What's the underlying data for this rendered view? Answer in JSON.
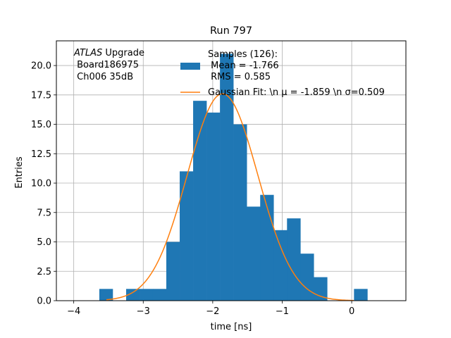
{
  "chart_data": {
    "type": "bar",
    "title": "Run 797",
    "xlabel": "time [ns]",
    "ylabel": "Entries",
    "xlim": [
      -4.25,
      0.78
    ],
    "ylim": [
      0,
      22.1
    ],
    "grid": true,
    "xticks": [
      -4,
      -3,
      -2,
      -1,
      0
    ],
    "xtick_labels": [
      "−4",
      "−3",
      "−2",
      "−1",
      "0"
    ],
    "yticks": [
      0,
      2.5,
      5,
      7.5,
      10,
      12.5,
      15,
      17.5,
      20
    ],
    "ytick_labels": [
      "0.0",
      "2.5",
      "5.0",
      "7.5",
      "10.0",
      "12.5",
      "15.0",
      "17.5",
      "20.0"
    ],
    "annotation": {
      "line1_italic": "ATLAS",
      "line1_rest": " Upgrade",
      "line2": " Board186975",
      "line3": " Ch006 35dB"
    },
    "histogram": {
      "color": "#1f77b4",
      "bin_edges": [
        -3.632,
        -3.439,
        -3.246,
        -3.053,
        -2.861,
        -2.668,
        -2.475,
        -2.282,
        -2.089,
        -1.896,
        -1.703,
        -1.51,
        -1.317,
        -1.124,
        -0.931,
        -0.738,
        -0.546,
        -0.353,
        -0.16,
        0.033,
        0.226
      ],
      "counts": [
        1,
        0,
        1,
        1,
        1,
        5,
        11,
        17,
        16,
        21,
        15,
        8,
        9,
        6,
        7,
        4,
        2,
        0,
        0,
        1
      ]
    },
    "fit": {
      "color": "#ff7f0e",
      "mu": -1.859,
      "sigma": 0.509,
      "amplitude": 17.6,
      "x_range": [
        -3.53,
        0.03
      ]
    },
    "legend": {
      "position": "upper-right",
      "samples_line1": "Samples (126):",
      "samples_line2": " Mean = -1.766",
      "samples_line3": " RMS = 0.585",
      "fit_label": "Gaussian Fit: \\n μ = -1.859 \\n σ=0.509"
    }
  }
}
